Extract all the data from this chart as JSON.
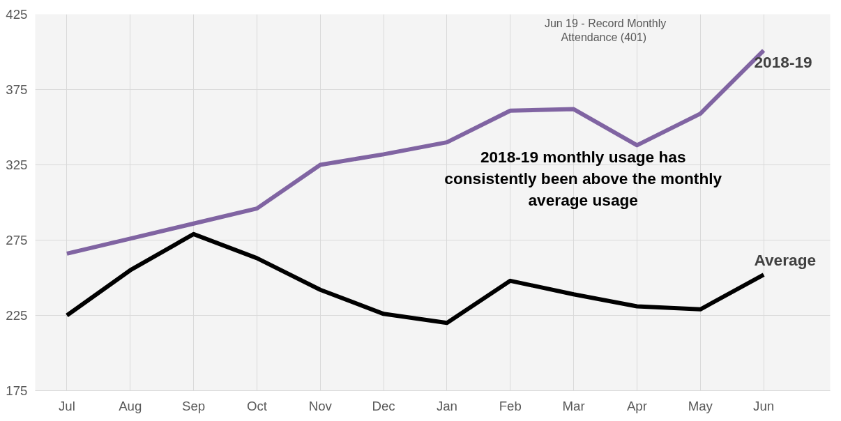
{
  "chart_data": {
    "type": "line",
    "categories": [
      "Jul",
      "Aug",
      "Sep",
      "Oct",
      "Nov",
      "Dec",
      "Jan",
      "Feb",
      "Mar",
      "Apr",
      "May",
      "Jun"
    ],
    "series": [
      {
        "name": "2018-19",
        "color": "#8064a2",
        "values": [
          266,
          276,
          286,
          296,
          325,
          332,
          340,
          361,
          362,
          338,
          359,
          401
        ]
      },
      {
        "name": "Average",
        "color": "#000000",
        "values": [
          225,
          255,
          279,
          263,
          242,
          226,
          220,
          248,
          239,
          231,
          229,
          252
        ]
      }
    ],
    "ylim": [
      175,
      425
    ],
    "yticks": [
      175,
      225,
      275,
      325,
      375,
      425
    ],
    "grid": true,
    "marker": "none",
    "line_style": "solid",
    "legend": false,
    "annotations": [
      "Jun 19 - Record Monthly Attendance (401)",
      "2018-19 monthly usage has consistently been above the monthly average usage"
    ]
  }
}
